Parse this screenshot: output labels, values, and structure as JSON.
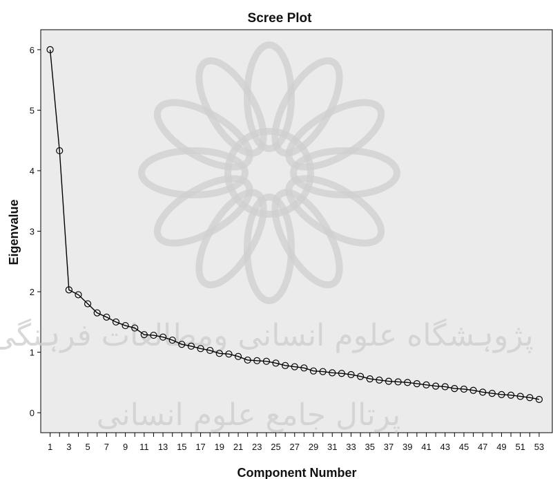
{
  "chart_data": {
    "type": "line",
    "title": "Scree Plot",
    "xlabel": "Component Number",
    "ylabel": "Eigenvalue",
    "x_tick_labels": [
      "1",
      "3",
      "5",
      "7",
      "9",
      "11",
      "13",
      "15",
      "17",
      "19",
      "21",
      "23",
      "25",
      "27",
      "29",
      "31",
      "33",
      "35",
      "37",
      "39",
      "41",
      "43",
      "45",
      "47",
      "49",
      "51",
      "53"
    ],
    "y_ticks": [
      0,
      1,
      2,
      3,
      4,
      5,
      6
    ],
    "xlim": [
      0,
      54.4
    ],
    "ylim": [
      -0.33,
      6.33
    ],
    "grid": false,
    "series": [
      {
        "x": [
          1,
          2,
          3,
          4,
          5,
          6,
          7,
          8,
          9,
          10,
          11,
          12,
          13,
          14,
          15,
          16,
          17,
          18,
          19,
          20,
          21,
          22,
          23,
          24,
          25,
          26,
          27,
          28,
          29,
          30,
          31,
          32,
          33,
          34,
          35,
          36,
          37,
          38,
          39,
          40,
          41,
          42,
          43,
          44,
          45,
          46,
          47,
          48,
          49,
          50,
          51,
          52,
          53
        ],
        "values": [
          6.0,
          4.33,
          2.03,
          1.95,
          1.8,
          1.65,
          1.58,
          1.5,
          1.44,
          1.4,
          1.29,
          1.28,
          1.25,
          1.2,
          1.13,
          1.1,
          1.06,
          1.03,
          0.98,
          0.97,
          0.93,
          0.87,
          0.86,
          0.85,
          0.82,
          0.78,
          0.76,
          0.74,
          0.69,
          0.68,
          0.66,
          0.65,
          0.63,
          0.6,
          0.56,
          0.54,
          0.52,
          0.51,
          0.5,
          0.48,
          0.46,
          0.44,
          0.43,
          0.4,
          0.39,
          0.37,
          0.34,
          0.32,
          0.3,
          0.29,
          0.27,
          0.25,
          0.22
        ]
      }
    ],
    "colors": {
      "background": "#ebebeb",
      "line": "#000000",
      "marker_stroke": "#000000",
      "marker_fill": "none"
    },
    "marker": "open-circle"
  },
  "watermark": {
    "line1": "پژوہشگاه علوم انسانی ومطالعات فرہنگی",
    "line2": "پرتال جامع علوم انسانی"
  }
}
